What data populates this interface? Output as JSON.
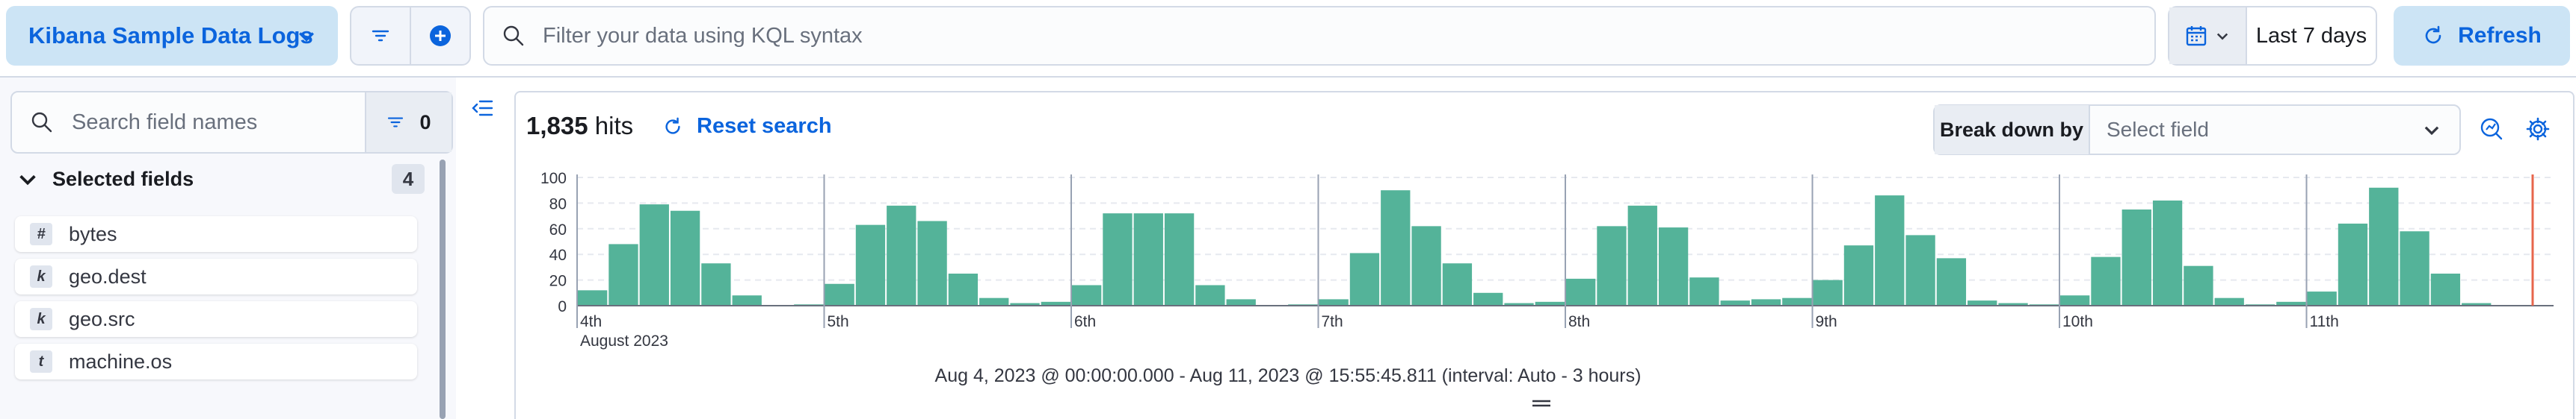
{
  "header": {
    "data_view": "Kibana Sample Data Logs",
    "filter_count": "",
    "query_placeholder": "Filter your data using KQL syntax",
    "date_range": "Last 7 days",
    "refresh_label": "Refresh",
    "accent_color": "#0b64dd"
  },
  "sidebar": {
    "search_placeholder": "Search field names",
    "filter_count": "0",
    "selected_title": "Selected fields",
    "selected_count": "4",
    "fields": [
      {
        "type": "#",
        "name": "bytes"
      },
      {
        "type": "k",
        "name": "geo.dest"
      },
      {
        "type": "k",
        "name": "geo.src"
      },
      {
        "type": "t",
        "name": "machine.os"
      }
    ]
  },
  "main": {
    "hits_count": "1,835",
    "hits_label": "hits",
    "reset_label": "Reset search",
    "breakdown_label": "Break down by",
    "breakdown_placeholder": "Select field",
    "interval_text": "Aug 4, 2023 @ 00:00:00.000 - Aug 11, 2023 @ 15:55:45.811 (interval: Auto - 3 hours)"
  },
  "chart_data": {
    "type": "bar",
    "bar_color": "#54b399",
    "ylim": [
      0,
      100
    ],
    "y_ticks": [
      0,
      20,
      40,
      60,
      80,
      100
    ],
    "grid": true,
    "day_labels": [
      "4th",
      "5th",
      "6th",
      "7th",
      "8th",
      "9th",
      "10th",
      "11th"
    ],
    "month_label": "August 2023",
    "values": [
      12,
      48,
      79,
      74,
      33,
      8,
      0,
      1,
      17,
      63,
      78,
      66,
      25,
      6,
      2,
      3,
      16,
      72,
      72,
      72,
      16,
      5,
      0,
      1,
      5,
      41,
      90,
      62,
      33,
      10,
      2,
      3,
      21,
      62,
      78,
      61,
      22,
      4,
      5,
      6,
      20,
      47,
      86,
      55,
      37,
      4,
      2,
      1,
      8,
      38,
      75,
      82,
      31,
      6,
      1,
      3,
      11,
      64,
      92,
      58,
      25,
      2
    ]
  }
}
